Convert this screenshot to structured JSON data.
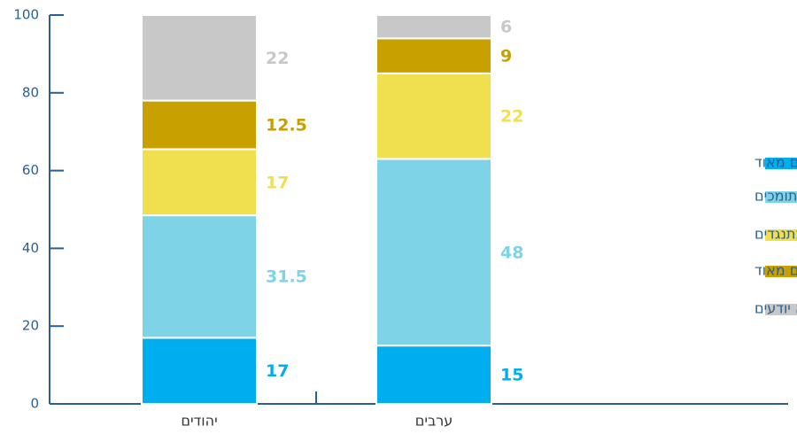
{
  "chart_data": {
    "type": "stacked_bar",
    "categories": [
      "יהודים",
      "ערבים"
    ],
    "series": [
      {
        "name": "תומכים מאוד",
        "color": "#00aeef",
        "values": [
          17,
          15
        ]
      },
      {
        "name": "די תומכים",
        "color": "#7fd3e6",
        "values": [
          31.5,
          48
        ]
      },
      {
        "name": "די מתנגדים",
        "color": "#f0e04f",
        "values": [
          17,
          22
        ]
      },
      {
        "name": "מתנגדים מאוד",
        "color": "#c8a000",
        "values": [
          12.5,
          9
        ]
      },
      {
        "name": "לא יודעים",
        "color": "#c8c8c8",
        "values": [
          22,
          6
        ]
      }
    ],
    "ylim": [
      0,
      100
    ],
    "yticks": [
      0,
      20,
      40,
      60,
      80,
      100
    ],
    "legend": "right"
  }
}
